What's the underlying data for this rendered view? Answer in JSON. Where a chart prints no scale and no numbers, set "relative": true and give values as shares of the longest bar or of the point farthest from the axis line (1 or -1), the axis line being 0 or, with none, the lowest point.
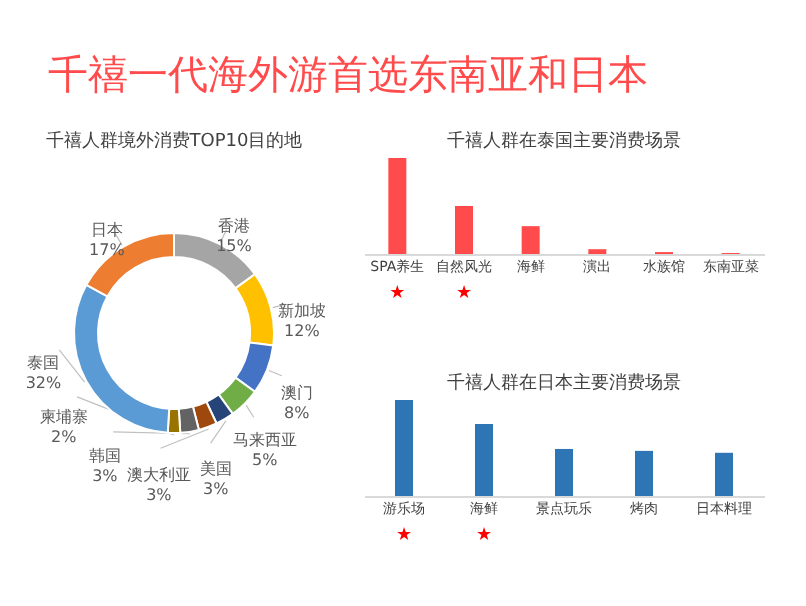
{
  "chart_data": [
    {
      "type": "other",
      "title": "千禧一代海外游首选东南亚和日本"
    },
    {
      "type": "donut",
      "title": "千禧人群境外消费TOP10目的地",
      "value_labels": [
        "15%",
        "12%",
        "8%",
        "5%",
        "3%",
        "3%",
        "3%",
        "2%",
        "32%",
        "17%"
      ],
      "categories": [
        "香港",
        "新加坡",
        "澳门",
        "马来西亚",
        "美国",
        "澳大利亚",
        "韩国",
        "柬埔寨",
        "泰国",
        "日本"
      ],
      "values": [
        15,
        12,
        8,
        5,
        3,
        3,
        3,
        2,
        32,
        17
      ],
      "colors": [
        "#a5a5a5",
        "#ffc000",
        "#4472c4",
        "#70ad47",
        "#264478",
        "#9e480e",
        "#636363",
        "#997300",
        "#5b9bd5",
        "#ed7d31"
      ]
    },
    {
      "type": "bar",
      "title": "千禧人群在泰国主要消费场景",
      "relative": true,
      "categories": [
        "SPA养生",
        "自然风光",
        "海鲜",
        "演出",
        "水族馆",
        "东南亚菜"
      ],
      "series": [
        {
          "color": "#ff4b4b",
          "values": [
            1,
            0.5,
            0.29,
            0.05,
            0.02,
            0.01
          ]
        }
      ],
      "annotations": [
        "★",
        "★"
      ]
    },
    {
      "type": "bar",
      "title": "千禧人群在日本主要消费场景",
      "relative": true,
      "categories": [
        "游乐场",
        "海鲜",
        "景点玩乐",
        "烤肉",
        "日本料理"
      ],
      "series": [
        {
          "color": "#2e75b6",
          "values": [
            1,
            0.75,
            0.49,
            0.47,
            0.45
          ]
        }
      ],
      "annotations": [
        "★",
        "★"
      ]
    }
  ]
}
